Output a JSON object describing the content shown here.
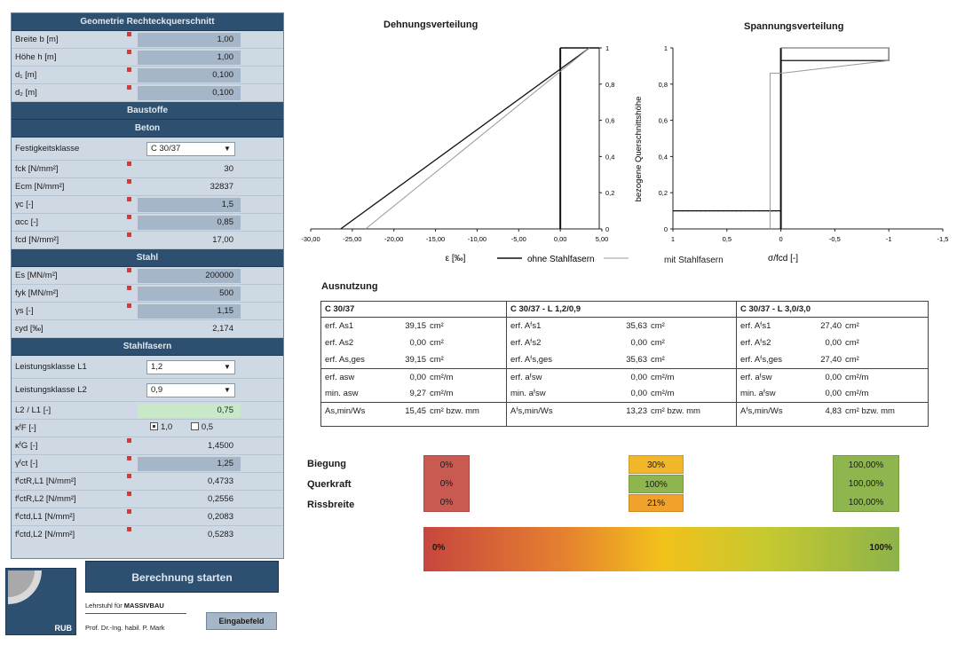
{
  "panel": {
    "geometry": {
      "title": "Geometrie Rechteckquerschnitt",
      "rows": [
        {
          "label": "Breite b [m]",
          "value": "1,00"
        },
        {
          "label": "Höhe h [m]",
          "value": "1,00"
        },
        {
          "label": "d₁ [m]",
          "value": "0,100"
        },
        {
          "label": "d₂ [m]",
          "value": "0,100"
        }
      ]
    },
    "materials_title": "Baustoffe",
    "concrete": {
      "title": "Beton",
      "strength_class_label": "Festigkeitsklasse",
      "strength_class_value": "C 30/37",
      "rows": [
        {
          "label": "fck [N/mm²]",
          "value": "30"
        },
        {
          "label": "Ecm [N/mm²]",
          "value": "32837"
        },
        {
          "label": "γc [-]",
          "value": "1,5"
        },
        {
          "label": "αcc [-]",
          "value": "0,85"
        },
        {
          "label": "fcd [N/mm²]",
          "value": "17,00"
        }
      ]
    },
    "steel": {
      "title": "Stahl",
      "rows": [
        {
          "label": "Es [MN/m²]",
          "value": "200000"
        },
        {
          "label": "fyk [MN/m²]",
          "value": "500"
        },
        {
          "label": "γs [-]",
          "value": "1,15"
        },
        {
          "label": "εyd [‰]",
          "value": "2,174"
        }
      ]
    },
    "fibres": {
      "title": "Stahlfasern",
      "class1_label": "Leistungsklasse L1",
      "class1_value": "1,2",
      "class2_label": "Leistungsklasse L2",
      "class2_value": "0,9",
      "ratio_label": "L2 / L1 [-]",
      "ratio_value": "0,75",
      "kf_label": "κᶠF [-]",
      "kf_option1": "1,0",
      "kf_option2": "0,5",
      "rows": [
        {
          "label": "κᶠG [-]",
          "value": "1,4500"
        },
        {
          "label": "γᶠct [-]",
          "value": "1,25"
        },
        {
          "label": "fᶠctR,L1 [N/mm²]",
          "value": "0,4733"
        },
        {
          "label": "fᶠctR,L2 [N/mm²]",
          "value": "0,2556"
        },
        {
          "label": "fᶠctd,L1 [N/mm²]",
          "value": "0,2083"
        },
        {
          "label": "fᶠctd,L2 [N/mm²]",
          "value": "0,5283"
        }
      ]
    }
  },
  "buttons": {
    "calculate": "Berechnung starten",
    "input_field": "Eingabefeld"
  },
  "footer": {
    "chair_prefix": "Lehrstuhl für ",
    "chair_name": "MASSIVBAU",
    "professor": "Prof. Dr.-Ing. habil. P. Mark",
    "logo_tag": "RUB"
  },
  "strain_chart": {
    "title": "Dehnungsverteilung",
    "xlabel": "ε [‰]",
    "legend1": "ohne Stahlfasern",
    "legend2": "mit Stahlfasern",
    "xticks": [
      "-30,00",
      "-25,00",
      "-20,00",
      "-15,00",
      "-10,00",
      "-5,00",
      "0,00",
      "5,00"
    ],
    "yticks": [
      "0",
      "0,2",
      "0,4",
      "0,6",
      "0,8",
      "1"
    ]
  },
  "stress_chart": {
    "title": "Spannungsverteilung",
    "ylabel": "bezogene Querschnittshöhe",
    "xlabel": "σ/fcd [-]",
    "xticks": [
      "1",
      "0,5",
      "0",
      "-0,5",
      "-1",
      "-1,5"
    ],
    "yticks": [
      "0",
      "0,2",
      "0,4",
      "0,6",
      "0,8",
      "1"
    ]
  },
  "chart_data": [
    {
      "type": "line",
      "title": "Dehnungsverteilung",
      "xlabel": "ε [‰]",
      "ylabel": "",
      "xlim": [
        -30,
        5
      ],
      "ylim": [
        0,
        1
      ],
      "series": [
        {
          "name": "ohne Stahlfasern",
          "x": [
            -26.4,
            3.5
          ],
          "y": [
            0,
            1
          ]
        },
        {
          "name": "mit Stahlfasern",
          "x": [
            -23.4,
            3.5
          ],
          "y": [
            0,
            1
          ]
        }
      ]
    },
    {
      "type": "line",
      "title": "Spannungsverteilung",
      "xlabel": "σ/fcd [-]",
      "ylabel": "bezogene Querschnittshöhe",
      "xlim": [
        1,
        -1.5
      ],
      "ylim": [
        0,
        1
      ],
      "series": [
        {
          "name": "ohne Stahlfasern",
          "x": [
            1,
            0,
            0,
            0,
            -1,
            -1,
            0
          ],
          "y": [
            0.1,
            0.1,
            0,
            0.93,
            0.93,
            1,
            1
          ]
        },
        {
          "name": "mit Stahlfasern",
          "x": [
            0.1,
            0.1,
            0,
            -1,
            -1,
            0
          ],
          "y": [
            0,
            0.86,
            0.86,
            0.93,
            1,
            1
          ]
        }
      ]
    }
  ],
  "util": {
    "title": "Ausnutzung",
    "columns": [
      {
        "header": "C 30/37",
        "rows": [
          {
            "k": "erf. As1",
            "v": "39,15",
            "u": "cm²"
          },
          {
            "k": "erf. As2",
            "v": "0,00",
            "u": "cm²"
          },
          {
            "k": "erf. As,ges",
            "v": "39,15",
            "u": "cm²"
          },
          {
            "k": "erf. asw",
            "v": "0,00",
            "u": "cm²/m"
          },
          {
            "k": "min. asw",
            "v": "9,27",
            "u": "cm²/m"
          },
          {
            "k": "As,min/Ws",
            "v": "15,45",
            "u": "cm² bzw. mm"
          }
        ]
      },
      {
        "header": "C 30/37 - L 1,2/0,9",
        "rows": [
          {
            "k": "erf. Aᶠs1",
            "v": "35,63",
            "u": "cm²"
          },
          {
            "k": "erf. Aᶠs2",
            "v": "0,00",
            "u": "cm²"
          },
          {
            "k": "erf. Aᶠs,ges",
            "v": "35,63",
            "u": "cm²"
          },
          {
            "k": "erf. aᶠsw",
            "v": "0,00",
            "u": "cm²/m"
          },
          {
            "k": "min. aᶠsw",
            "v": "0,00",
            "u": "cm²/m"
          },
          {
            "k": "Aᶠs,min/Ws",
            "v": "13,23",
            "u": "cm² bzw. mm"
          }
        ]
      },
      {
        "header": "C 30/37 - L 3,0/3,0",
        "rows": [
          {
            "k": "erf. Aᶠs1",
            "v": "27,40",
            "u": "cm²"
          },
          {
            "k": "erf. Aᶠs2",
            "v": "0,00",
            "u": "cm²"
          },
          {
            "k": "erf. Aᶠs,ges",
            "v": "27,40",
            "u": "cm²"
          },
          {
            "k": "erf. aᶠsw",
            "v": "0,00",
            "u": "cm²/m"
          },
          {
            "k": "min. aᶠsw",
            "v": "0,00",
            "u": "cm²/m"
          },
          {
            "k": "Aᶠs,min/Ws",
            "v": "4,83",
            "u": "cm² bzw. mm"
          }
        ]
      }
    ]
  },
  "ratings": {
    "labels": [
      "Biegung",
      "Querkraft",
      "Rissbreite"
    ],
    "col1": [
      "0%",
      "0%",
      "0%"
    ],
    "col2": [
      "30%",
      "100%",
      "21%"
    ],
    "col3": [
      "100,00%",
      "100,00%",
      "100,00%"
    ],
    "colors": {
      "red": "#c85a52",
      "orange": "#f0a22a",
      "yellow": "#f2c11b",
      "green": "#8fb54e"
    }
  },
  "scale": {
    "left": "0%",
    "right": "100%"
  }
}
